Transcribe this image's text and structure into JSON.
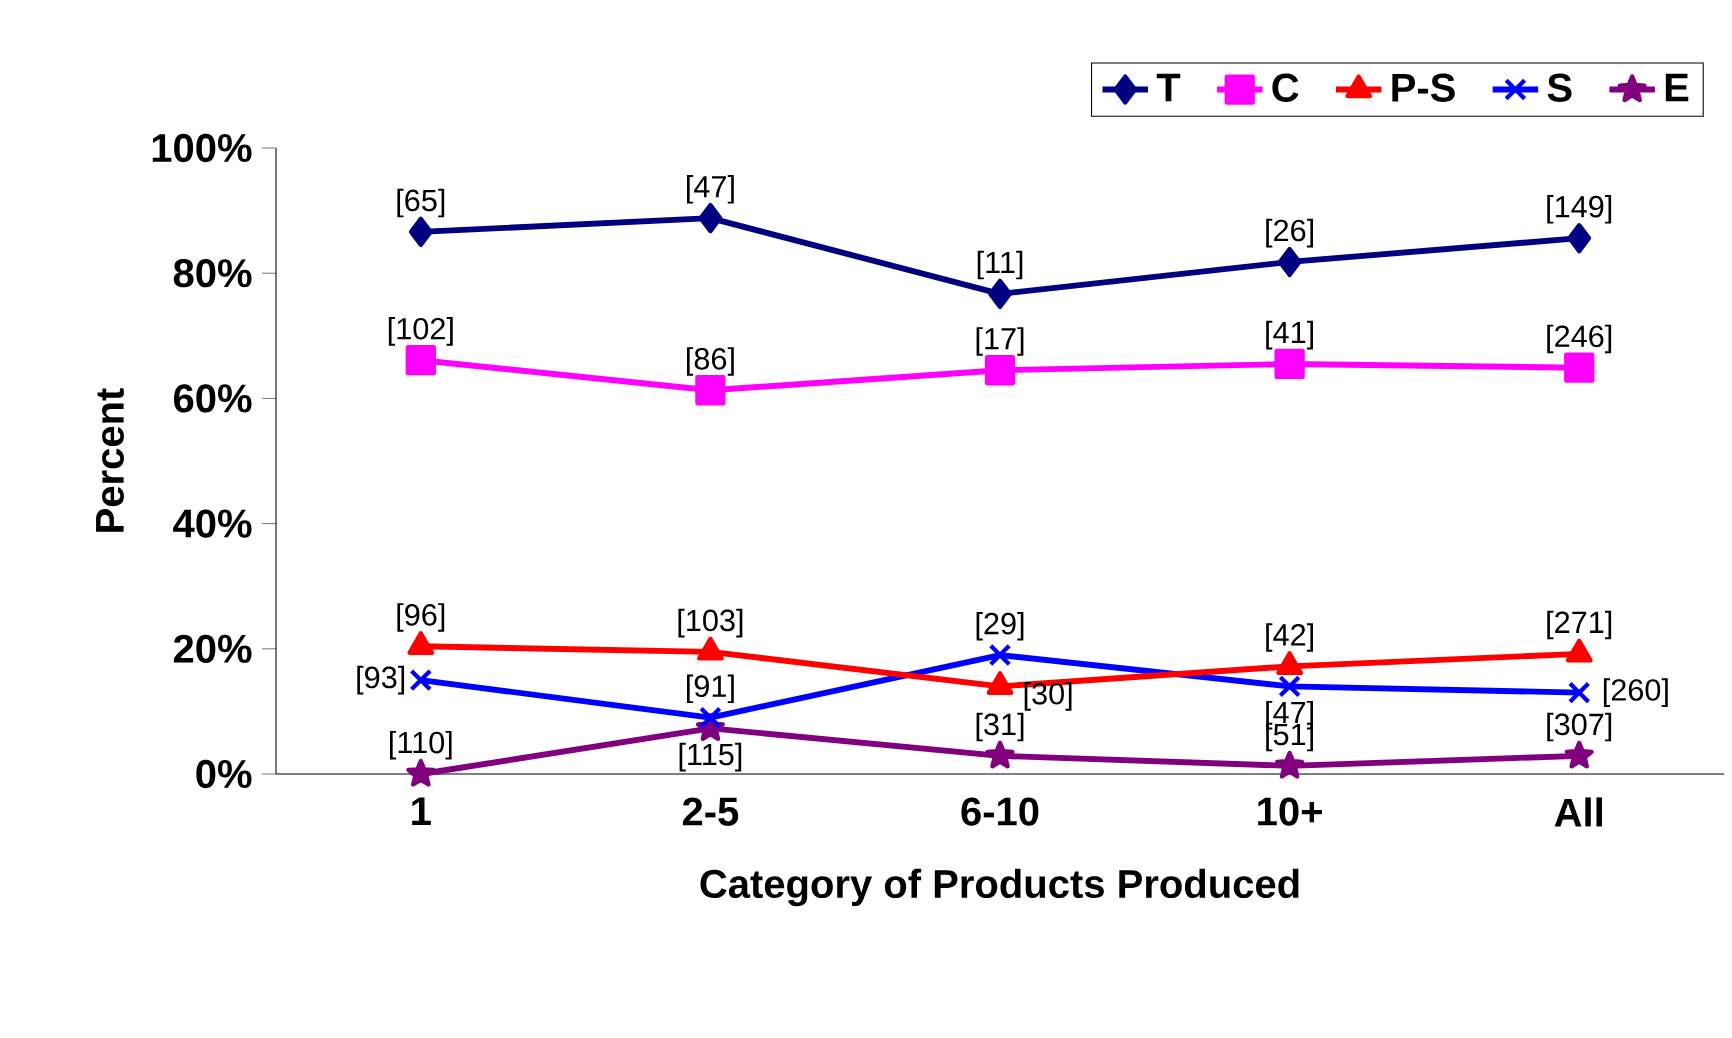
{
  "chart_data": {
    "type": "line",
    "xlabel": "Category of Products Produced",
    "ylabel": "Percent",
    "categories": [
      "1",
      "2-5",
      "6-10",
      "10+",
      "All"
    ],
    "ylim": [
      0,
      100
    ],
    "yticks": [
      {
        "value": 0,
        "label": "0%"
      },
      {
        "value": 20,
        "label": "20%"
      },
      {
        "value": 40,
        "label": "40%"
      },
      {
        "value": 60,
        "label": "60%"
      },
      {
        "value": 80,
        "label": "80%"
      },
      {
        "value": 100,
        "label": "100%"
      }
    ],
    "legend": "top right",
    "grid": false,
    "series": [
      {
        "name": "T",
        "color": "#000080",
        "marker": "diamond",
        "values": [
          86.6,
          88.8,
          76.7,
          81.8,
          85.6
        ]
      },
      {
        "name": "C",
        "color": "#ff00ff",
        "marker": "square",
        "values": [
          66.1,
          61.3,
          64.5,
          65.5,
          64.9
        ]
      },
      {
        "name": "P-S",
        "color": "#ff0000",
        "marker": "triangle",
        "values": [
          20.4,
          19.5,
          14,
          17.2,
          19.2
        ]
      },
      {
        "name": "S",
        "color": "#0000ff",
        "marker": "cross",
        "values": [
          15,
          9,
          19,
          14,
          13
        ]
      },
      {
        "name": "E",
        "color": "#800080",
        "marker": "star",
        "values": [
          0,
          7.3,
          2.9,
          1.3,
          2.9
        ]
      }
    ],
    "annotations": [
      {
        "text": "[65]",
        "x": "1",
        "y": 86.6
      },
      {
        "text": "[47]",
        "x": "2-5",
        "y": 88.8
      },
      {
        "text": "[11]",
        "x": "6-10",
        "y": 76.7
      },
      {
        "text": "[26]",
        "x": "10+",
        "y": 81.8
      },
      {
        "text": "[149]",
        "x": "All",
        "y": 85.6
      },
      {
        "text": "[102]",
        "x": "1",
        "y": 66.1
      },
      {
        "text": "[86]",
        "x": "2-5",
        "y": 61.3
      },
      {
        "text": "[17]",
        "x": "6-10",
        "y": 64.5
      },
      {
        "text": "[41]",
        "x": "10+",
        "y": 65.5
      },
      {
        "text": "[246]",
        "x": "All",
        "y": 64.9
      },
      {
        "text": "[96]",
        "x": "1",
        "y": 20.4
      },
      {
        "text": "[103]",
        "x": "2-5",
        "y": 19.5
      },
      {
        "text": "[30]",
        "x": "6-10",
        "y": 14
      },
      {
        "text": "[42]",
        "x": "10+",
        "y": 17.2
      },
      {
        "text": "[271]",
        "x": "All",
        "y": 19.2
      },
      {
        "text": "[93]",
        "x": "1",
        "y": 15
      },
      {
        "text": "[91]",
        "x": "2-5",
        "y": 9
      },
      {
        "text": "[29]",
        "x": "6-10",
        "y": 19
      },
      {
        "text": "[47]",
        "x": "10+",
        "y": 14
      },
      {
        "text": "[260]",
        "x": "All",
        "y": 13
      },
      {
        "text": "[110]",
        "x": "1",
        "y": 0
      },
      {
        "text": "[115]",
        "x": "2-5",
        "y": 7.3
      },
      {
        "text": "[31]",
        "x": "6-10",
        "y": 2.9
      },
      {
        "text": "[51]",
        "x": "10+",
        "y": 1.3
      },
      {
        "text": "[307]",
        "x": "All",
        "y": 2.9
      }
    ]
  }
}
